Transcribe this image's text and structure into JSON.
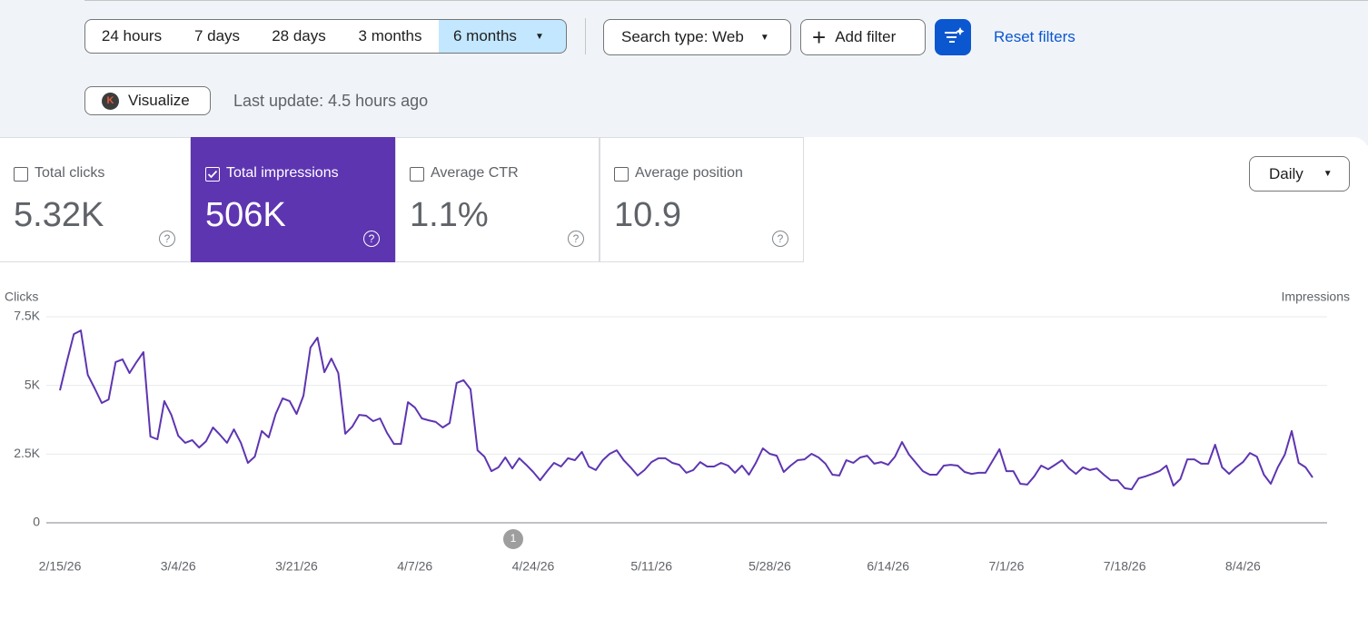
{
  "filters": {
    "ranges": [
      "24 hours",
      "7 days",
      "28 days",
      "3 months",
      "6 months"
    ],
    "search_type": "Search type: Web",
    "add_filter": "Add filter",
    "reset": "Reset filters"
  },
  "visualize": "Visualize",
  "visualize_icon": "K",
  "last_update": "Last update: 4.5 hours ago",
  "metrics": [
    {
      "label": "Total clicks",
      "value": "5.32K",
      "checked": false
    },
    {
      "label": "Total impressions",
      "value": "506K",
      "checked": true
    },
    {
      "label": "Average CTR",
      "value": "1.1%",
      "checked": false
    },
    {
      "label": "Average position",
      "value": "10.9",
      "checked": false
    }
  ],
  "granularity": "Daily",
  "chart_data": {
    "type": "line",
    "y_label_left": "Clicks",
    "y_label_right": "Impressions",
    "annotation": "1",
    "categories": [
      "2/15/26",
      null,
      null,
      null,
      null,
      null,
      null,
      null,
      null,
      null,
      null,
      null,
      null,
      null,
      null,
      null,
      null,
      "3/4/26",
      null,
      null,
      null,
      null,
      null,
      null,
      null,
      null,
      null,
      null,
      null,
      null,
      null,
      null,
      null,
      null,
      "3/21/26",
      null,
      null,
      null,
      null,
      null,
      null,
      null,
      null,
      null,
      null,
      null,
      null,
      null,
      null,
      null,
      null,
      "4/7/26",
      null,
      null,
      null,
      null,
      null,
      null,
      null,
      null,
      null,
      null,
      null,
      null,
      null,
      null,
      null,
      null,
      "4/24/26",
      null,
      null,
      null,
      null,
      null,
      null,
      null,
      null,
      null,
      null,
      null,
      null,
      null,
      null,
      null,
      null,
      "5/11/26",
      null,
      null,
      null,
      null,
      null,
      null,
      null,
      null,
      null,
      null,
      null,
      null,
      null,
      null,
      null,
      null,
      "5/28/26",
      null,
      null,
      null,
      null,
      null,
      null,
      null,
      null,
      null,
      null,
      null,
      null,
      null,
      null,
      null,
      null,
      "6/14/26",
      null,
      null,
      null,
      null,
      null,
      null,
      null,
      null,
      null,
      null,
      null,
      null,
      null,
      null,
      null,
      null,
      "7/1/26",
      null,
      null,
      null,
      null,
      null,
      null,
      null,
      null,
      null,
      null,
      null,
      null,
      null,
      null,
      null,
      null,
      "7/18/26",
      null,
      null,
      null,
      null,
      null,
      null,
      null,
      null,
      null,
      null,
      null,
      null,
      null,
      null,
      null,
      null,
      "8/4/26",
      null,
      null,
      null,
      null,
      null,
      null,
      null,
      null,
      null,
      null
    ],
    "series": [
      {
        "color": "#5e35b1",
        "values": [
          4820,
          5880,
          6870,
          7000,
          5390,
          4890,
          4360,
          4490,
          5850,
          5950,
          5450,
          5850,
          6210,
          3140,
          3040,
          4430,
          3930,
          3170,
          2910,
          3010,
          2740,
          2970,
          3470,
          3200,
          2910,
          3400,
          2910,
          2180,
          2410,
          3340,
          3110,
          3960,
          4530,
          4430,
          3960,
          4630,
          6380,
          6740,
          5480,
          5980,
          5450,
          3240,
          3500,
          3930,
          3900,
          3700,
          3800,
          3270,
          2870,
          2870,
          4390,
          4200,
          3800,
          3730,
          3670,
          3470,
          3630,
          5090,
          5190,
          4860,
          2640,
          2410,
          1880,
          2020,
          2380,
          1980,
          2350,
          2110,
          1850,
          1550,
          1880,
          2180,
          2050,
          2350,
          2280,
          2580,
          2050,
          1920,
          2280,
          2510,
          2640,
          2280,
          2020,
          1720,
          1920,
          2210,
          2350,
          2350,
          2180,
          2110,
          1820,
          1920,
          2210,
          2050,
          2050,
          2180,
          2080,
          1820,
          2080,
          1750,
          2180,
          2710,
          2510,
          2440,
          1850,
          2080,
          2280,
          2310,
          2510,
          2380,
          2150,
          1750,
          1720,
          2280,
          2180,
          2380,
          2440,
          2150,
          2210,
          2110,
          2410,
          2940,
          2480,
          2180,
          1880,
          1750,
          1750,
          2080,
          2110,
          2080,
          1850,
          1780,
          1820,
          1820,
          2250,
          2680,
          1880,
          1880,
          1420,
          1390,
          1690,
          2080,
          1950,
          2110,
          2280,
          1980,
          1780,
          2020,
          1920,
          1980,
          1750,
          1550,
          1550,
          1260,
          1220,
          1620,
          1690,
          1780,
          1880,
          2080,
          1350,
          1590,
          2310,
          2310,
          2150,
          2150,
          2840,
          2020,
          1780,
          2020,
          2210,
          2540,
          2410,
          1750,
          1420,
          2020,
          2480,
          3340,
          2180,
          2020,
          1650
        ]
      }
    ],
    "ylim": [
      0,
      7500
    ],
    "yticks": [
      0,
      {
        "value": 2500,
        "label": "2.5K"
      },
      {
        "value": 5000,
        "label": "5K"
      },
      {
        "value": 7500,
        "label": "7.5K"
      }
    ],
    "grid": true
  }
}
